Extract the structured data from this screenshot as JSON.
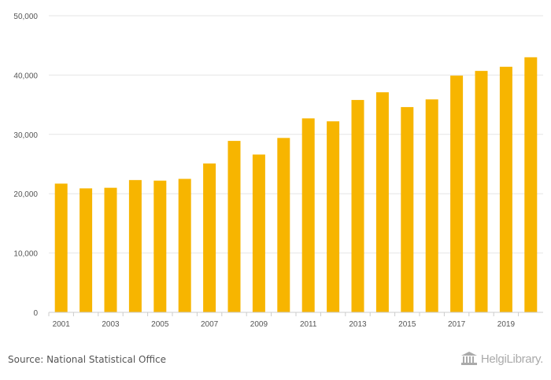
{
  "chart_data": {
    "type": "bar",
    "title": "",
    "xlabel": "",
    "ylabel": "",
    "ylim": [
      0,
      50000
    ],
    "yticks": [
      0,
      10000,
      20000,
      30000,
      40000,
      50000
    ],
    "ytick_labels": [
      "0",
      "10,000",
      "20,000",
      "30,000",
      "40,000",
      "50,000"
    ],
    "categories": [
      "2001",
      "2002",
      "2003",
      "2004",
      "2005",
      "2006",
      "2007",
      "2008",
      "2009",
      "2010",
      "2011",
      "2012",
      "2013",
      "2014",
      "2015",
      "2016",
      "2017",
      "2018",
      "2019",
      "2020"
    ],
    "xtick_labels": [
      "2001",
      "2003",
      "2005",
      "2007",
      "2009",
      "2011",
      "2013",
      "2015",
      "2017",
      "2019"
    ],
    "values": [
      21700,
      20900,
      21000,
      22300,
      22200,
      22500,
      25100,
      28900,
      26600,
      29400,
      32700,
      32200,
      35800,
      37100,
      34600,
      35900,
      39900,
      40700,
      41400,
      43000
    ],
    "bar_color": "#f7b500",
    "grid": true
  },
  "footer": {
    "source": "Source: National Statistical Office",
    "logo_text": "HelgiLibrary."
  }
}
